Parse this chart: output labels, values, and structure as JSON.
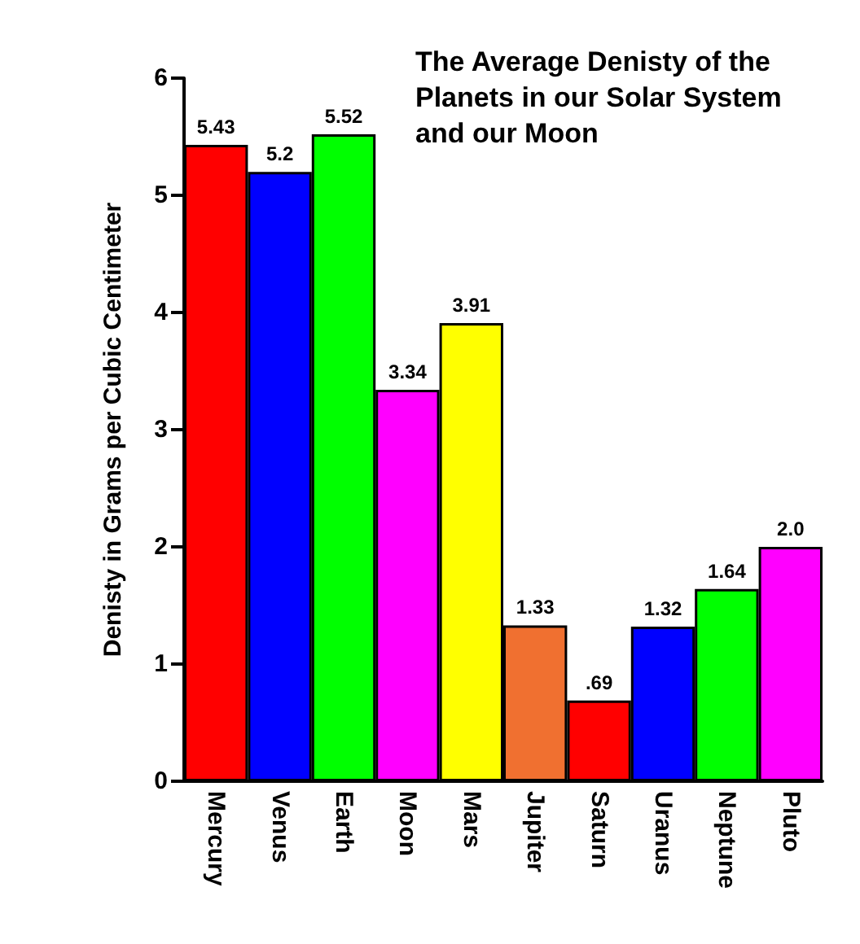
{
  "chart_data": {
    "type": "bar",
    "title": "The Average Denisty of the Planets in our Solar System and our Moon",
    "ylabel": "Denisty in Grams per Cubic Centimeter",
    "categories": [
      "Mercury",
      "Venus",
      "Earth",
      "Moon",
      "Mars",
      "Jupiter",
      "Saturn",
      "Uranus",
      "Neptune",
      "Pluto"
    ],
    "values": [
      5.43,
      5.2,
      5.52,
      3.34,
      3.91,
      1.33,
      0.69,
      1.32,
      1.64,
      2.0
    ],
    "value_labels": [
      "5.43",
      "5.2",
      "5.52",
      "3.34",
      "3.91",
      "1.33",
      ".69",
      "1.32",
      "1.64",
      "2.0"
    ],
    "colors": [
      "#ff0000",
      "#0000ff",
      "#00ff00",
      "#ff00ff",
      "#ffff00",
      "#f07030",
      "#ff0000",
      "#0000ff",
      "#00ff00",
      "#ff00ff"
    ],
    "ylim": [
      0,
      6
    ],
    "yticks": [
      0,
      1,
      2,
      3,
      4,
      5,
      6
    ]
  }
}
